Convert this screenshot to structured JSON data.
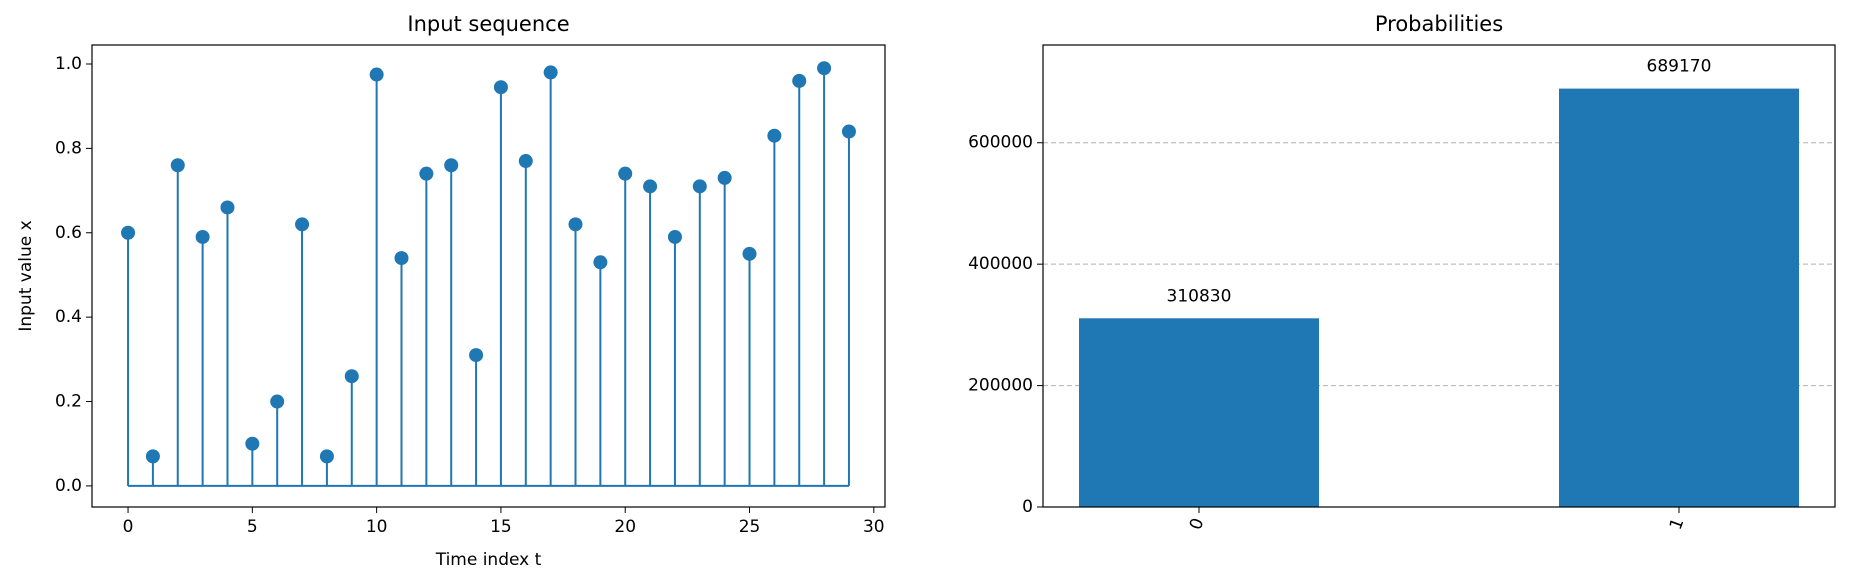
{
  "chart_data": [
    {
      "type": "stem",
      "title": "Input sequence",
      "x_label": "Time index t",
      "y_label": "Input value x",
      "color": "#1f77b4",
      "x": [
        0,
        1,
        2,
        3,
        4,
        5,
        6,
        7,
        8,
        9,
        10,
        11,
        12,
        13,
        14,
        15,
        16,
        17,
        18,
        19,
        20,
        21,
        22,
        23,
        24,
        25,
        26,
        27,
        28,
        29
      ],
      "values": [
        0.6,
        0.07,
        0.76,
        0.59,
        0.66,
        0.1,
        0.2,
        0.62,
        0.07,
        0.26,
        0.975,
        0.54,
        0.74,
        0.76,
        0.31,
        0.945,
        0.77,
        0.98,
        0.62,
        0.53,
        0.74,
        0.71,
        0.59,
        0.71,
        0.73,
        0.55,
        0.83,
        0.96,
        0.99,
        0.84
      ],
      "xlim": [
        -1.45,
        30.45
      ],
      "xticks": [
        0,
        5,
        10,
        15,
        20,
        25,
        30
      ],
      "ylim": [
        -0.05,
        1.045
      ],
      "yticks": [
        {
          "value": 0,
          "label": "0.0"
        },
        {
          "value": 0.2,
          "label": "0.2"
        },
        {
          "value": 0.4,
          "label": "0.4"
        },
        {
          "value": 0.6,
          "label": "0.6"
        },
        {
          "value": 0.8,
          "label": "0.8"
        },
        {
          "value": 1,
          "label": "1.0"
        }
      ]
    },
    {
      "type": "bar",
      "title": "Probabilities",
      "color": "#1f77b4",
      "categories": [
        "0",
        "1"
      ],
      "values": [
        310830,
        689170
      ],
      "ylim": [
        0,
        761000
      ],
      "yticks": [
        0,
        200000,
        400000,
        600000
      ],
      "grid": true
    }
  ]
}
